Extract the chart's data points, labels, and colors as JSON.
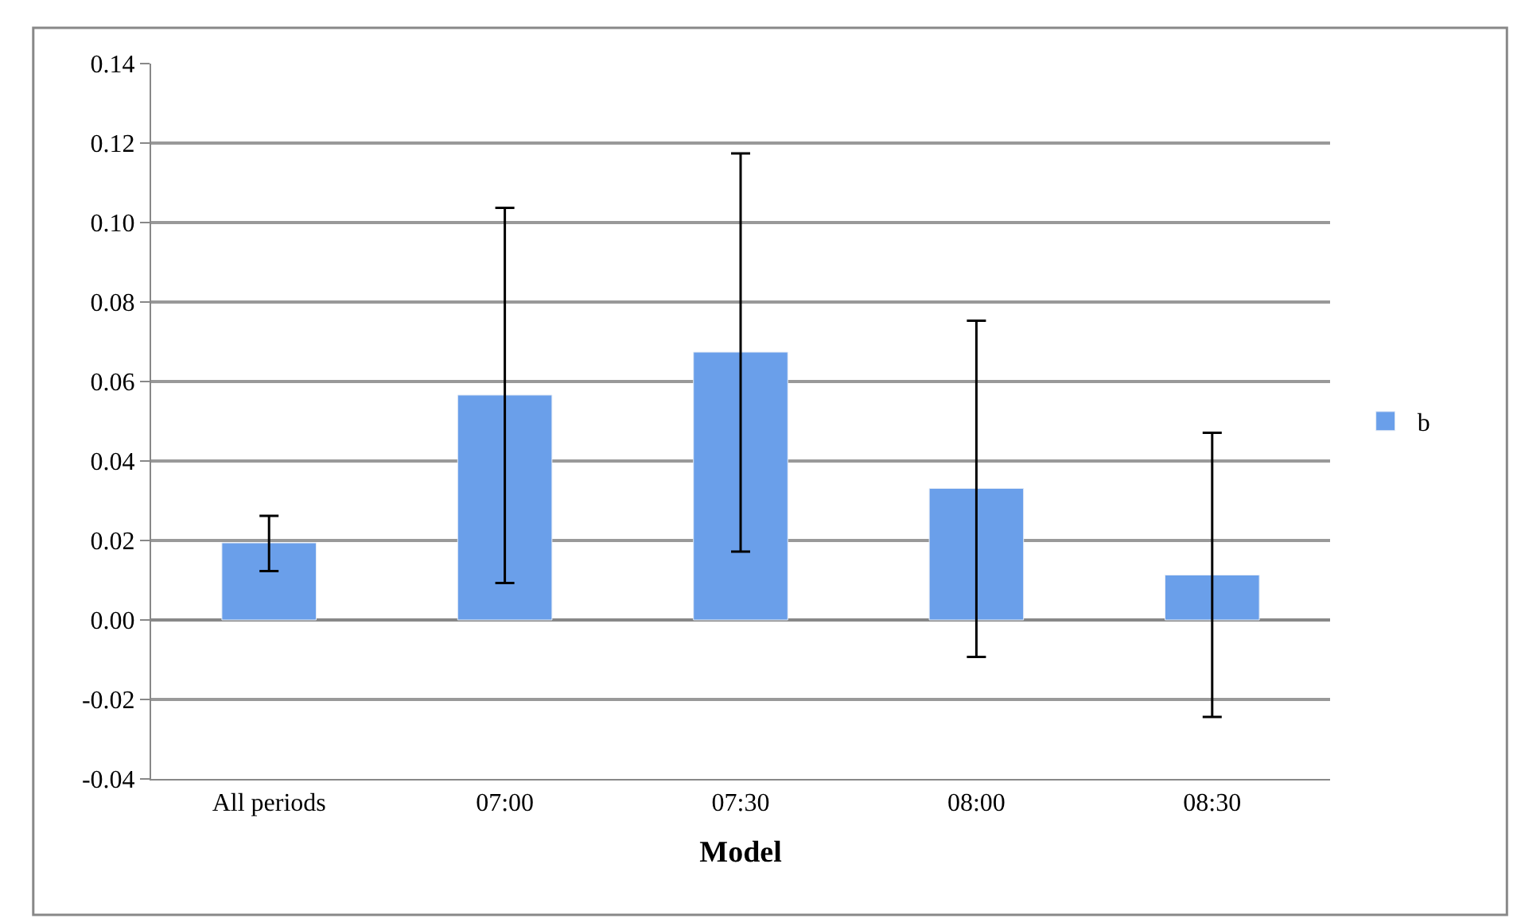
{
  "chart_data": {
    "type": "bar",
    "xlabel": "Model",
    "categories": [
      "All periods",
      "07:00",
      "07:30",
      "08:00",
      "08:30"
    ],
    "series": [
      {
        "name": "b",
        "color": "#6a9fea",
        "values": [
          0.0194,
          0.0566,
          0.0674,
          0.0331,
          0.0113
        ],
        "errors": [
          [
            0.0123,
            0.0262
          ],
          [
            0.0093,
            0.1037
          ],
          [
            0.0172,
            0.1174
          ],
          [
            -0.0093,
            0.0753
          ],
          [
            -0.0244,
            0.0471
          ]
        ]
      }
    ],
    "ylim": [
      -0.04,
      0.14
    ],
    "yticks": [
      {
        "value": -0.04,
        "label": "-0.04"
      },
      {
        "value": -0.02,
        "label": "-0.02"
      },
      {
        "value": 0,
        "label": "0.00"
      },
      {
        "value": 0.02,
        "label": "0.02"
      },
      {
        "value": 0.04,
        "label": "0.04"
      },
      {
        "value": 0.06,
        "label": "0.06"
      },
      {
        "value": 0.08,
        "label": "0.08"
      },
      {
        "value": 0.1,
        "label": "0.10"
      },
      {
        "value": 0.12,
        "label": "0.12"
      },
      {
        "value": 0.14,
        "label": "0.14"
      }
    ],
    "grid": "y",
    "legend": "right"
  }
}
